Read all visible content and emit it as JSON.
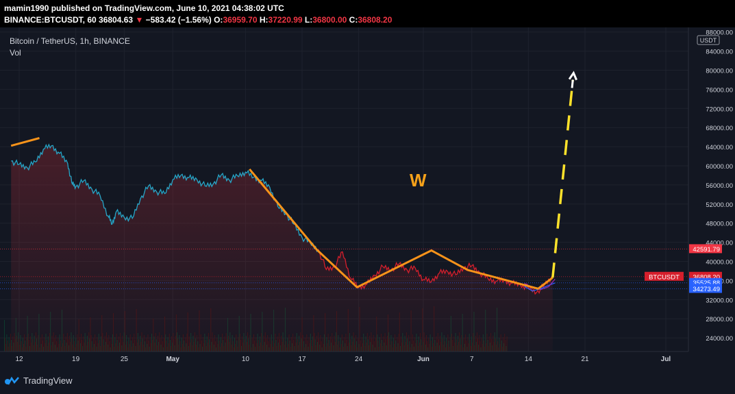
{
  "header": {
    "publisher_line": "mamin1990 published on TradingView.com, June 10, 2021 04:38:02 UTC",
    "symbol_line": "BINANCE:BTCUSDT, 60",
    "price": "36804.63",
    "change": "−583.42 (−1.56%)",
    "o_label": "O:",
    "o_value": "36959.70",
    "h_label": "H:",
    "h_value": "37220.99",
    "l_label": "L:",
    "l_value": "36800.00",
    "c_label": "C:",
    "c_value": "36808.20"
  },
  "legend": {
    "title": "Bitcoin / TetherUS, 1h, BINANCE",
    "vol": "Vol"
  },
  "footer": {
    "brand": "TradingView"
  },
  "colors": {
    "background": "#131722",
    "up_line": "#26a6c8",
    "down_line": "#d61f2c",
    "pattern": "#f7931a",
    "projection": "#ffe22b"
  },
  "chart_data": {
    "type": "line",
    "currency_tag": "USDT",
    "annotation": "W",
    "ylim": [
      20000,
      88000
    ],
    "y_ticks": [
      24000,
      28000,
      32000,
      36000,
      40000,
      44000,
      48000,
      52000,
      56000,
      60000,
      64000,
      68000,
      72000,
      76000,
      80000,
      84000,
      88000
    ],
    "y_tick_labels": [
      "24000.00",
      "28000.00",
      "32000.00",
      "36000.00",
      "40000.00",
      "44000.00",
      "48000.00",
      "52000.00",
      "56000.00",
      "60000.00",
      "64000.00",
      "68000.00",
      "72000.00",
      "76000.00",
      "80000.00",
      "84000.00",
      "88000.00"
    ],
    "x_ticks": [
      "12",
      "19",
      "25",
      "May",
      "10",
      "17",
      "24",
      "Jun",
      "7",
      "14",
      "21",
      "Jul"
    ],
    "x_tick_days": [
      0,
      7,
      13,
      19,
      28,
      35,
      42,
      50,
      56,
      63,
      70,
      80
    ],
    "price_labels": [
      {
        "label": "42591.79",
        "value": 42591.79,
        "color": "#f23645"
      },
      {
        "label": "36808.20",
        "value": 36808.2,
        "color": "#d61f2c",
        "tag": "BTCUSDT"
      },
      {
        "label": "35525.88",
        "value": 35525.88,
        "color": "#2962ff"
      },
      {
        "label": "34273.49",
        "value": 34273.49,
        "color": "#2962ff"
      }
    ],
    "series": [
      {
        "color": "#26a6c8",
        "points": [
          [
            -1,
            61000
          ],
          [
            0,
            60300
          ],
          [
            1,
            59600
          ],
          [
            2,
            60800
          ],
          [
            3,
            63500
          ],
          [
            4,
            64200
          ],
          [
            5,
            62600
          ],
          [
            6,
            60500
          ],
          [
            6.5,
            56500
          ],
          [
            7,
            55600
          ],
          [
            8,
            56900
          ],
          [
            9,
            55100
          ],
          [
            10,
            53800
          ],
          [
            11,
            49500
          ],
          [
            11.5,
            47800
          ],
          [
            12,
            50400
          ],
          [
            13,
            49200
          ],
          [
            14,
            49000
          ],
          [
            15,
            53100
          ],
          [
            16,
            55800
          ],
          [
            17,
            54600
          ],
          [
            18,
            54200
          ],
          [
            19,
            57100
          ],
          [
            20,
            58000
          ],
          [
            21,
            57500
          ],
          [
            22,
            57100
          ],
          [
            23,
            55800
          ],
          [
            24,
            56200
          ],
          [
            25,
            58100
          ],
          [
            26,
            57000
          ],
          [
            27,
            57900
          ],
          [
            28,
            58700
          ],
          [
            29,
            57600
          ],
          [
            30,
            56900
          ],
          [
            31,
            55500
          ],
          [
            32,
            51500
          ],
          [
            33,
            50000
          ],
          [
            34,
            47800
          ],
          [
            35,
            45000
          ],
          [
            36,
            43900
          ],
          [
            37,
            42500
          ]
        ]
      },
      {
        "color": "#d61f2c",
        "points": [
          [
            37,
            42500
          ],
          [
            38,
            38300
          ],
          [
            39,
            38800
          ],
          [
            40,
            42000
          ],
          [
            41,
            36500
          ],
          [
            42,
            34500
          ],
          [
            43,
            35200
          ],
          [
            44,
            37100
          ],
          [
            45,
            38900
          ],
          [
            46,
            38200
          ],
          [
            47,
            39500
          ],
          [
            48,
            38200
          ],
          [
            49,
            38600
          ],
          [
            50,
            36200
          ],
          [
            51,
            35800
          ],
          [
            52,
            37600
          ],
          [
            53,
            37900
          ],
          [
            54,
            37200
          ],
          [
            55,
            38700
          ],
          [
            56,
            39100
          ],
          [
            57,
            37600
          ],
          [
            58,
            36400
          ],
          [
            59,
            35900
          ],
          [
            60,
            36000
          ],
          [
            61,
            35400
          ],
          [
            62,
            35100
          ],
          [
            63,
            34500
          ],
          [
            64,
            33500
          ],
          [
            65,
            35100
          ],
          [
            66,
            36800
          ]
        ]
      }
    ],
    "ma_lines": [
      {
        "color": "#2962ff",
        "points": [
          [
            62.5,
            34800
          ],
          [
            63.5,
            33800
          ],
          [
            64.5,
            34300
          ],
          [
            65.5,
            35000
          ],
          [
            66.3,
            35500
          ]
        ]
      },
      {
        "color": "#9c27b0",
        "points": [
          [
            62.5,
            35400
          ],
          [
            63.5,
            34600
          ],
          [
            64.5,
            34100
          ],
          [
            65.5,
            34700
          ],
          [
            66.3,
            36300
          ]
        ]
      }
    ],
    "pattern_lines": [
      {
        "color": "#f7931a",
        "points": [
          [
            -1,
            64200
          ],
          [
            2.5,
            65800
          ]
        ]
      },
      {
        "color": "#f7931a",
        "points": [
          [
            28.5,
            59300
          ],
          [
            36.8,
            42500
          ],
          [
            41.8,
            34600
          ],
          [
            51.0,
            42300
          ],
          [
            55.5,
            38200
          ],
          [
            64.2,
            34300
          ],
          [
            66.0,
            36600
          ]
        ]
      }
    ],
    "projection": {
      "color": "#ffe22b",
      "points": [
        [
          66.0,
          36600
        ],
        [
          68.5,
          78000
        ]
      ],
      "arrow_color": "#ffffff"
    }
  }
}
